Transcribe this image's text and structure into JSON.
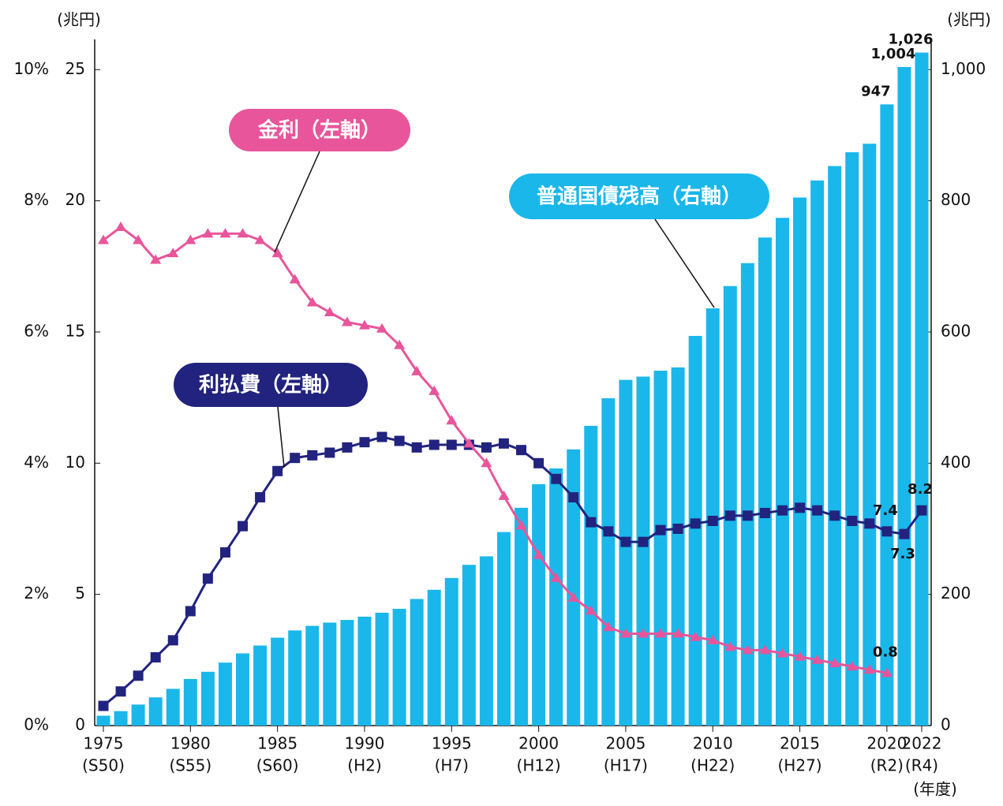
{
  "chart_data": {
    "type": "bar-line",
    "categories": [
      1975,
      1976,
      1977,
      1978,
      1979,
      1980,
      1981,
      1982,
      1983,
      1984,
      1985,
      1986,
      1987,
      1988,
      1989,
      1990,
      1991,
      1992,
      1993,
      1994,
      1995,
      1996,
      1997,
      1998,
      1999,
      2000,
      2001,
      2002,
      2003,
      2004,
      2005,
      2006,
      2007,
      2008,
      2009,
      2010,
      2011,
      2012,
      2013,
      2014,
      2015,
      2016,
      2017,
      2018,
      2019,
      2020,
      2021,
      2022
    ],
    "xticks": [
      1975,
      1980,
      1985,
      1990,
      1995,
      2000,
      2005,
      2010,
      2015,
      2020,
      2022
    ],
    "xtick_sublabels": [
      "(S50)",
      "(S55)",
      "(S60)",
      "(H2)",
      "(H7)",
      "(H12)",
      "(H17)",
      "(H22)",
      "(H27)",
      "(R2)",
      "(R4)"
    ],
    "x_unit": "(年度)",
    "y_unit": "(兆円)",
    "y2_unit": "(兆円)",
    "ylim": [
      0,
      26
    ],
    "yticks": [
      0,
      5,
      10,
      15,
      20,
      25
    ],
    "y2lim": [
      0,
      1040
    ],
    "y2ticks": [
      0,
      200,
      400,
      600,
      800,
      {
        "value": 1000,
        "label": "1,000"
      }
    ],
    "y3lim": [
      0,
      10.4
    ],
    "y3ticks": [
      {
        "value": 0,
        "label": "0%"
      },
      {
        "value": 2,
        "label": "2%"
      },
      {
        "value": 4,
        "label": "4%"
      },
      {
        "value": 6,
        "label": "6%"
      },
      {
        "value": 8,
        "label": "8%"
      },
      {
        "value": 10,
        "label": "10%"
      }
    ],
    "series": [
      {
        "name": "普通国債残高（右軸）",
        "kind": "bar",
        "axis": "y2",
        "color": "#1ab7ea",
        "values": [
          15,
          22,
          32,
          43,
          56,
          71,
          82,
          96,
          110,
          122,
          134,
          145,
          152,
          157,
          161,
          166,
          172,
          178,
          193,
          207,
          225,
          245,
          258,
          295,
          332,
          368,
          392,
          421,
          457,
          499,
          527,
          532,
          541,
          546,
          594,
          636,
          670,
          705,
          744,
          774,
          805,
          831,
          853,
          874,
          887,
          947,
          1004,
          1026
        ],
        "value_labels": [
          null,
          null,
          null,
          null,
          null,
          null,
          null,
          null,
          null,
          null,
          null,
          null,
          null,
          null,
          null,
          null,
          null,
          null,
          null,
          null,
          null,
          null,
          null,
          null,
          null,
          null,
          null,
          null,
          null,
          null,
          null,
          null,
          null,
          null,
          null,
          null,
          null,
          null,
          null,
          null,
          null,
          null,
          null,
          null,
          null,
          "947",
          "1,004",
          "1,026"
        ]
      },
      {
        "name": "利払費（左軸）",
        "kind": "line",
        "marker": "square",
        "axis": "y",
        "color": "#22237e",
        "values": [
          0.75,
          1.3,
          1.9,
          2.6,
          3.25,
          4.36,
          5.6,
          6.6,
          7.6,
          8.7,
          9.7,
          10.2,
          10.3,
          10.4,
          10.6,
          10.8,
          11.0,
          10.85,
          10.6,
          10.7,
          10.7,
          10.7,
          10.6,
          10.75,
          10.5,
          10.0,
          9.4,
          8.7,
          7.75,
          7.4,
          7.0,
          7.0,
          7.45,
          7.5,
          7.7,
          7.8,
          8.0,
          8.0,
          8.1,
          8.2,
          8.3,
          8.2,
          8.0,
          7.8,
          7.7,
          7.4,
          7.3,
          8.2
        ],
        "value_labels": [
          null,
          null,
          null,
          null,
          null,
          null,
          null,
          null,
          null,
          null,
          null,
          null,
          null,
          null,
          null,
          null,
          null,
          null,
          null,
          null,
          null,
          null,
          null,
          null,
          null,
          null,
          null,
          null,
          null,
          null,
          null,
          null,
          null,
          null,
          null,
          null,
          null,
          null,
          null,
          null,
          null,
          null,
          null,
          null,
          null,
          "7.4",
          "7.3",
          "8.2"
        ]
      },
      {
        "name": "金利（左軸）",
        "kind": "line",
        "marker": "triangle",
        "axis": "y3",
        "color": "#e8559a",
        "values": [
          7.4,
          7.6,
          7.4,
          7.1,
          7.2,
          7.4,
          7.5,
          7.5,
          7.5,
          7.4,
          7.2,
          6.8,
          6.45,
          6.3,
          6.15,
          6.1,
          6.05,
          5.8,
          5.4,
          5.1,
          4.65,
          4.3,
          4.0,
          3.5,
          3.05,
          2.6,
          2.25,
          1.95,
          1.75,
          1.5,
          1.4,
          1.4,
          1.4,
          1.4,
          1.35,
          1.3,
          1.2,
          1.15,
          1.15,
          1.1,
          1.05,
          1.0,
          0.95,
          0.9,
          0.85,
          0.8,
          null,
          null
        ],
        "value_labels": [
          null,
          null,
          null,
          null,
          null,
          null,
          null,
          null,
          null,
          null,
          null,
          null,
          null,
          null,
          null,
          null,
          null,
          null,
          null,
          null,
          null,
          null,
          null,
          null,
          null,
          null,
          null,
          null,
          null,
          null,
          null,
          null,
          null,
          null,
          null,
          null,
          null,
          null,
          null,
          null,
          null,
          null,
          null,
          null,
          null,
          "0.8",
          null,
          null
        ]
      }
    ]
  }
}
